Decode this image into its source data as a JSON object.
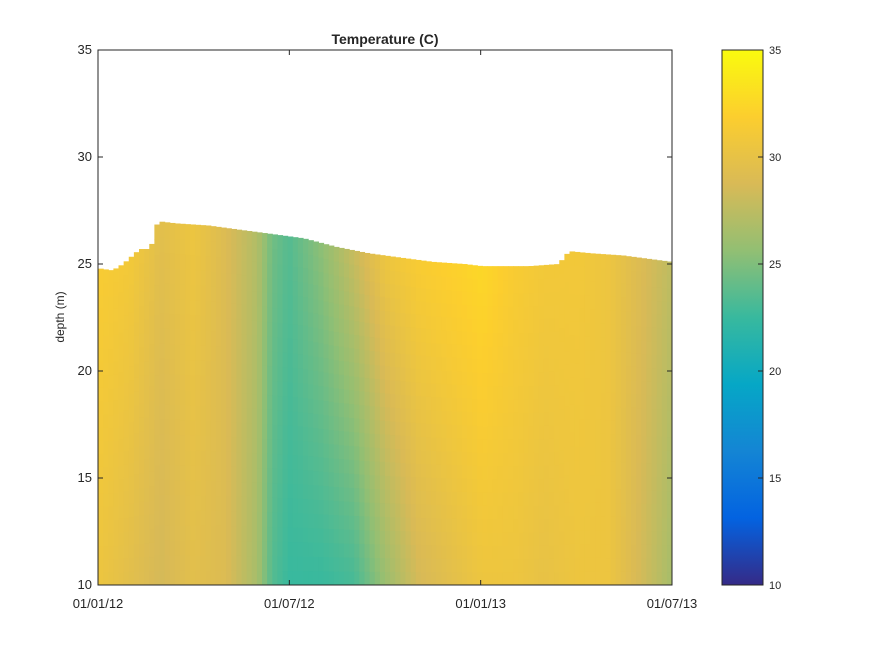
{
  "chart_data": {
    "type": "heatmap",
    "title": "Temperature (C)",
    "xlabel": "",
    "ylabel": "depth (m)",
    "x_ticks": [
      "01/01/12",
      "01/07/12",
      "01/01/13",
      "01/07/13"
    ],
    "x_range": [
      "2012-01-01",
      "2013-07-01"
    ],
    "ylim": [
      10,
      35
    ],
    "y_ticks": [
      10,
      15,
      20,
      25,
      30,
      35
    ],
    "colorbar": {
      "colormap": "parula",
      "clim": [
        10,
        35
      ],
      "ticks": [
        10,
        15,
        20,
        25,
        30,
        35
      ],
      "stops": [
        "#352a87",
        "#0363e1",
        "#1485d4",
        "#06a7c6",
        "#38b99e",
        "#92bf73",
        "#d9ba56",
        "#fcce2e",
        "#f9fb0e"
      ]
    },
    "surface_depth": {
      "dates": [
        "2012-01-01",
        "2012-01-15",
        "2012-01-25",
        "2012-02-10",
        "2012-02-20",
        "2012-02-27",
        "2012-03-15",
        "2012-04-15",
        "2012-05-15",
        "2012-06-15",
        "2012-07-15",
        "2012-08-15",
        "2012-09-15",
        "2012-10-15",
        "2012-11-15",
        "2012-12-15",
        "2013-01-01",
        "2013-01-15",
        "2013-02-15",
        "2013-03-15",
        "2013-03-25",
        "2013-04-15",
        "2013-05-15",
        "2013-06-15",
        "2013-07-01"
      ],
      "depth": [
        24.8,
        24.7,
        25.0,
        25.7,
        25.7,
        27.0,
        26.9,
        26.8,
        26.6,
        26.4,
        26.2,
        25.8,
        25.5,
        25.3,
        25.1,
        25.0,
        24.9,
        24.9,
        24.9,
        25.0,
        25.6,
        25.5,
        25.4,
        25.2,
        25.1
      ]
    },
    "temperature_profile": {
      "dates": [
        "2012-01-01",
        "2012-02-01",
        "2012-03-01",
        "2012-04-01",
        "2012-05-01",
        "2012-06-01",
        "2012-06-15",
        "2012-07-01",
        "2012-08-01",
        "2012-09-01",
        "2012-10-01",
        "2012-11-01",
        "2012-12-01",
        "2013-01-01",
        "2013-02-01",
        "2013-03-01",
        "2013-04-01",
        "2013-05-01",
        "2013-06-01",
        "2013-07-01"
      ],
      "bottom_temp": [
        30.5,
        29.5,
        28.5,
        29.5,
        29.0,
        26.5,
        23.5,
        22.5,
        22.5,
        23.0,
        26.0,
        28.5,
        29.5,
        30.5,
        30.5,
        30.0,
        30.5,
        30.5,
        28.5,
        26.5
      ],
      "top_temp": [
        31.5,
        31.0,
        29.5,
        30.5,
        29.0,
        27.0,
        24.5,
        23.5,
        25.5,
        28.0,
        30.5,
        31.5,
        32.0,
        32.5,
        31.5,
        31.0,
        31.0,
        30.5,
        29.0,
        27.5
      ]
    }
  }
}
